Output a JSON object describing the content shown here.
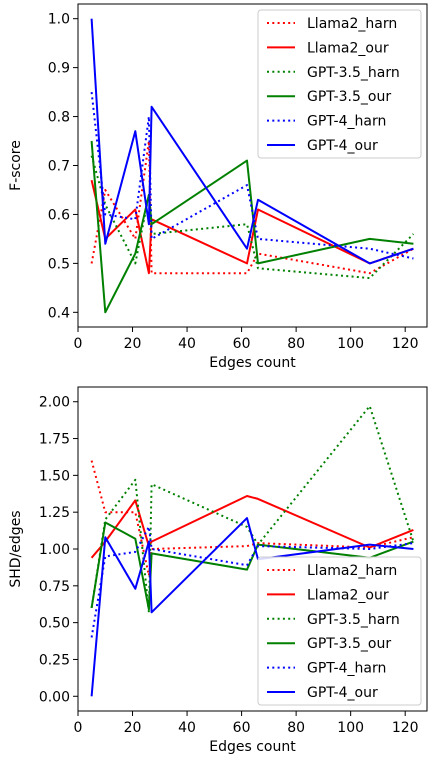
{
  "chart_data": [
    {
      "type": "line",
      "xlabel": "Edges count",
      "ylabel": "F-score",
      "xlim": [
        0,
        128
      ],
      "ylim": [
        0.37,
        1.03
      ],
      "xticks": [
        0,
        20,
        40,
        60,
        80,
        100,
        120
      ],
      "yticks": [
        0.4,
        0.5,
        0.6,
        0.7,
        0.8,
        0.9,
        1.0
      ],
      "ytick_labels": [
        "0.4",
        "0.5",
        "0.6",
        "0.7",
        "0.8",
        "0.9",
        "1.0"
      ],
      "grid": false,
      "legend_position": "top-right",
      "series": [
        {
          "name": "Llama2_harn",
          "color": "#ff0000",
          "style": "dotted",
          "x": [
            5,
            10,
            21,
            26,
            27,
            62,
            66,
            107,
            123
          ],
          "y": [
            0.5,
            0.65,
            0.55,
            0.75,
            0.48,
            0.48,
            0.52,
            0.48,
            0.53
          ]
        },
        {
          "name": "Llama2_our",
          "color": "#ff0000",
          "style": "solid",
          "x": [
            5,
            10,
            21,
            26,
            27,
            62,
            66,
            107,
            123
          ],
          "y": [
            0.67,
            0.55,
            0.61,
            0.48,
            0.59,
            0.5,
            0.61,
            0.5,
            0.53
          ]
        },
        {
          "name": "GPT-3.5_harn",
          "color": "#008000",
          "style": "dotted",
          "x": [
            5,
            10,
            21,
            26,
            27,
            62,
            66,
            107,
            123
          ],
          "y": [
            0.72,
            0.62,
            0.5,
            0.64,
            0.56,
            0.58,
            0.49,
            0.47,
            0.56
          ]
        },
        {
          "name": "GPT-3.5_our",
          "color": "#008000",
          "style": "solid",
          "x": [
            5,
            10,
            21,
            26,
            27,
            62,
            66,
            107,
            123
          ],
          "y": [
            0.75,
            0.4,
            0.52,
            0.64,
            0.58,
            0.71,
            0.5,
            0.55,
            0.54
          ]
        },
        {
          "name": "GPT-4_harn",
          "color": "#0000ff",
          "style": "dotted",
          "x": [
            5,
            10,
            21,
            26,
            27,
            62,
            66,
            107,
            123
          ],
          "y": [
            0.85,
            0.6,
            0.59,
            0.8,
            0.55,
            0.66,
            0.55,
            0.53,
            0.51
          ]
        },
        {
          "name": "GPT-4_our",
          "color": "#0000ff",
          "style": "solid",
          "x": [
            5,
            10,
            21,
            26,
            27,
            62,
            66,
            107,
            123
          ],
          "y": [
            1.0,
            0.54,
            0.77,
            0.58,
            0.82,
            0.53,
            0.63,
            0.5,
            0.53
          ]
        }
      ]
    },
    {
      "type": "line",
      "xlabel": "Edges count",
      "ylabel": "SHD/edges",
      "xlim": [
        0,
        128
      ],
      "ylim": [
        -0.1,
        2.1
      ],
      "xticks": [
        0,
        20,
        40,
        60,
        80,
        100,
        120
      ],
      "yticks": [
        0.0,
        0.25,
        0.5,
        0.75,
        1.0,
        1.25,
        1.5,
        1.75,
        2.0
      ],
      "ytick_labels": [
        "0.00",
        "0.25",
        "0.50",
        "0.75",
        "1.00",
        "1.25",
        "1.50",
        "1.75",
        "2.00"
      ],
      "grid": false,
      "legend_position": "lower-right",
      "series": [
        {
          "name": "Llama2_harn",
          "color": "#ff0000",
          "style": "dotted",
          "x": [
            5,
            10,
            21,
            26,
            27,
            62,
            66,
            107,
            123
          ],
          "y": [
            1.6,
            1.25,
            1.25,
            0.82,
            1.0,
            1.02,
            1.04,
            1.01,
            1.08
          ]
        },
        {
          "name": "Llama2_our",
          "color": "#ff0000",
          "style": "solid",
          "x": [
            5,
            10,
            21,
            26,
            27,
            62,
            66,
            107,
            123
          ],
          "y": [
            0.94,
            1.05,
            1.33,
            1.02,
            1.05,
            1.36,
            1.34,
            1.01,
            1.13
          ]
        },
        {
          "name": "GPT-3.5_harn",
          "color": "#008000",
          "style": "dotted",
          "x": [
            5,
            10,
            21,
            26,
            27,
            62,
            66,
            107,
            123
          ],
          "y": [
            0.6,
            1.2,
            1.47,
            0.57,
            1.44,
            1.15,
            1.03,
            1.97,
            1.05
          ]
        },
        {
          "name": "GPT-3.5_our",
          "color": "#008000",
          "style": "solid",
          "x": [
            5,
            10,
            21,
            26,
            27,
            62,
            66,
            107,
            123
          ],
          "y": [
            0.6,
            1.18,
            1.07,
            0.59,
            0.97,
            0.86,
            1.03,
            0.94,
            1.05
          ]
        },
        {
          "name": "GPT-4_harn",
          "color": "#0000ff",
          "style": "dotted",
          "x": [
            5,
            10,
            21,
            26,
            27,
            62,
            66,
            107,
            123
          ],
          "y": [
            0.4,
            0.95,
            0.98,
            1.15,
            1.0,
            0.89,
            1.02,
            1.0,
            1.04
          ]
        },
        {
          "name": "GPT-4_our",
          "color": "#0000ff",
          "style": "solid",
          "x": [
            5,
            10,
            21,
            26,
            27,
            62,
            66,
            107,
            123
          ],
          "y": [
            0.0,
            1.08,
            0.73,
            1.05,
            0.57,
            1.21,
            0.93,
            1.03,
            1.0
          ]
        }
      ]
    }
  ]
}
